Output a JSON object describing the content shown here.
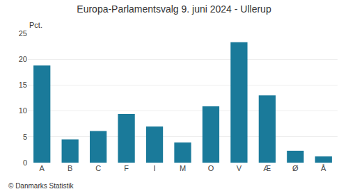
{
  "chart_data": {
    "type": "bar",
    "title": "Europa-Parlamentsvalg 9. juni 2024 - Ullerup",
    "ylabel": "Pct.",
    "annotations": [
      "© Danmarks Statistik"
    ],
    "categories": [
      "A",
      "B",
      "C",
      "F",
      "I",
      "M",
      "O",
      "V",
      "Æ",
      "Ø",
      "Å"
    ],
    "values": [
      18.8,
      4.5,
      6.1,
      9.4,
      7.0,
      3.9,
      10.9,
      23.3,
      13.0,
      2.3,
      1.2
    ],
    "color": "#1a7a9a",
    "ylim": [
      0,
      25
    ],
    "yticks": [
      0,
      5,
      10,
      15,
      20,
      25
    ],
    "grid": true
  }
}
